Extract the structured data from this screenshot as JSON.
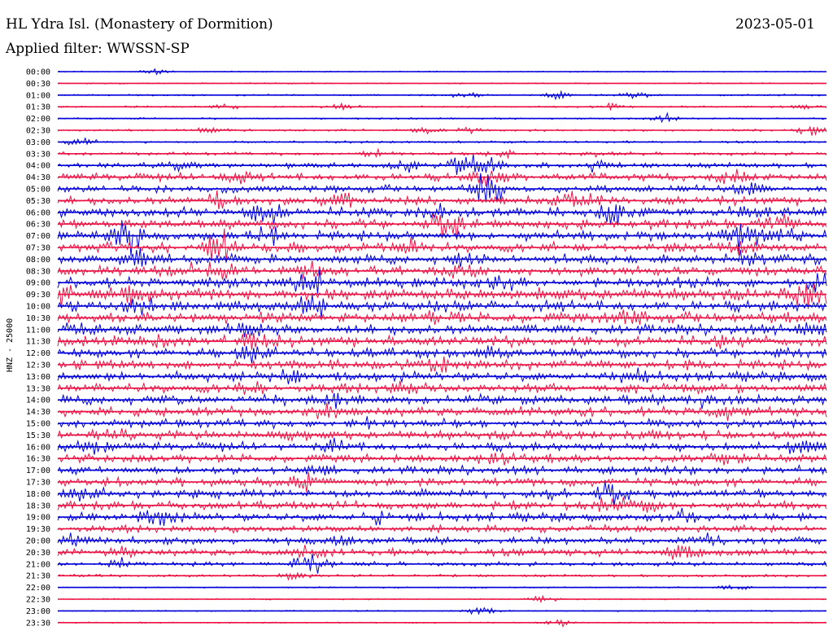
{
  "header": {
    "title": "HL Ydra Isl. (Monastery of Dormition)",
    "date": "2023-05-01",
    "filter": "Applied filter: WWSSN-SP"
  },
  "colors": {
    "odd": "#0000dd",
    "even": "#ee1144"
  },
  "chart_data": {
    "type": "line",
    "title": "HL Ydra Isl. (Monastery of Dormition)",
    "ylabel": "HNZ - 25000",
    "trace_colors": [
      "#0000dd",
      "#ee1144"
    ],
    "rows": [
      {
        "label": "00:00",
        "activity": 0.05,
        "events": [
          [
            0.13,
            0.3
          ]
        ]
      },
      {
        "label": "00:30",
        "activity": 0.06,
        "events": []
      },
      {
        "label": "01:00",
        "activity": 0.08,
        "events": [
          [
            0.53,
            0.4
          ],
          [
            0.65,
            0.4
          ],
          [
            0.75,
            0.3
          ]
        ]
      },
      {
        "label": "01:30",
        "activity": 0.08,
        "events": [
          [
            0.22,
            0.3
          ],
          [
            0.37,
            0.3
          ],
          [
            0.72,
            0.3
          ],
          [
            0.97,
            0.3
          ]
        ]
      },
      {
        "label": "02:00",
        "activity": 0.08,
        "events": [
          [
            0.79,
            0.4
          ]
        ]
      },
      {
        "label": "02:30",
        "activity": 0.1,
        "events": [
          [
            0.2,
            0.3
          ],
          [
            0.48,
            0.3
          ],
          [
            0.54,
            0.4
          ],
          [
            0.98,
            0.6
          ]
        ]
      },
      {
        "label": "03:00",
        "activity": 0.1,
        "events": [
          [
            0.03,
            0.4
          ]
        ]
      },
      {
        "label": "03:30",
        "activity": 0.15,
        "events": [
          [
            0.41,
            0.4
          ],
          [
            0.58,
            0.4
          ],
          [
            0.7,
            0.3
          ]
        ]
      },
      {
        "label": "04:00",
        "activity": 0.25,
        "events": [
          [
            0.16,
            0.5
          ],
          [
            0.45,
            0.5
          ],
          [
            0.53,
            1.2
          ],
          [
            0.56,
            0.6
          ],
          [
            0.7,
            0.5
          ]
        ]
      },
      {
        "label": "04:30",
        "activity": 0.35,
        "events": [
          [
            0.23,
            0.9
          ],
          [
            0.56,
            0.9
          ],
          [
            0.88,
            0.6
          ]
        ]
      },
      {
        "label": "05:00",
        "activity": 0.35,
        "events": [
          [
            0.56,
            1.8
          ],
          [
            0.9,
            0.6
          ]
        ]
      },
      {
        "label": "05:30",
        "activity": 0.4,
        "events": [
          [
            0.21,
            1.0
          ],
          [
            0.37,
            0.7
          ],
          [
            0.67,
            0.6
          ],
          [
            0.7,
            0.6
          ]
        ]
      },
      {
        "label": "06:00",
        "activity": 0.45,
        "events": [
          [
            0.27,
            1.5
          ],
          [
            0.49,
            0.9
          ],
          [
            0.72,
            1.3
          ],
          [
            0.9,
            0.6
          ]
        ]
      },
      {
        "label": "06:30",
        "activity": 0.45,
        "events": [
          [
            0.51,
            1.4
          ],
          [
            0.94,
            0.7
          ]
        ]
      },
      {
        "label": "07:00",
        "activity": 0.45,
        "events": [
          [
            0.09,
            2.0
          ],
          [
            0.27,
            0.7
          ],
          [
            0.89,
            1.4
          ],
          [
            0.94,
            0.6
          ]
        ]
      },
      {
        "label": "07:30",
        "activity": 0.45,
        "events": [
          [
            0.21,
            1.6
          ],
          [
            0.46,
            0.7
          ],
          [
            0.89,
            0.7
          ]
        ]
      },
      {
        "label": "08:00",
        "activity": 0.45,
        "events": [
          [
            0.1,
            1.6
          ],
          [
            0.53,
            0.7
          ],
          [
            0.89,
            0.8
          ]
        ]
      },
      {
        "label": "08:30",
        "activity": 0.45,
        "events": [
          [
            0.17,
            0.8
          ],
          [
            0.21,
            1.0
          ],
          [
            0.33,
            0.8
          ],
          [
            0.53,
            0.7
          ]
        ]
      },
      {
        "label": "09:00",
        "activity": 0.5,
        "events": [
          [
            0.33,
            1.8
          ],
          [
            0.58,
            0.7
          ],
          [
            1.0,
            1.6
          ]
        ]
      },
      {
        "label": "09:30",
        "activity": 0.55,
        "events": [
          [
            0.0,
            1.4
          ],
          [
            0.1,
            1.0
          ],
          [
            0.98,
            1.2
          ]
        ]
      },
      {
        "label": "10:00",
        "activity": 0.5,
        "events": [
          [
            0.33,
            1.2
          ],
          [
            0.1,
            0.9
          ]
        ]
      },
      {
        "label": "10:30",
        "activity": 0.5,
        "events": [
          [
            0.5,
            0.7
          ],
          [
            0.74,
            0.7
          ]
        ]
      },
      {
        "label": "11:00",
        "activity": 0.5,
        "events": [
          [
            0.03,
            0.9
          ],
          [
            0.24,
            0.9
          ],
          [
            0.98,
            0.7
          ]
        ]
      },
      {
        "label": "11:30",
        "activity": 0.5,
        "events": [
          [
            0.14,
            0.7
          ],
          [
            0.26,
            0.9
          ],
          [
            0.87,
            0.6
          ]
        ]
      },
      {
        "label": "12:00",
        "activity": 0.45,
        "events": [
          [
            0.26,
            1.0
          ],
          [
            0.56,
            0.7
          ]
        ]
      },
      {
        "label": "12:30",
        "activity": 0.45,
        "events": [
          [
            0.5,
            0.6
          ]
        ]
      },
      {
        "label": "13:00",
        "activity": 0.45,
        "events": [
          [
            0.3,
            0.6
          ],
          [
            0.75,
            0.5
          ]
        ]
      },
      {
        "label": "13:30",
        "activity": 0.45,
        "events": [
          [
            0.25,
            0.6
          ],
          [
            0.45,
            0.6
          ]
        ]
      },
      {
        "label": "14:00",
        "activity": 0.45,
        "events": [
          [
            0.36,
            0.6
          ],
          [
            0.83,
            0.7
          ]
        ]
      },
      {
        "label": "14:30",
        "activity": 0.45,
        "events": [
          [
            0.35,
            0.7
          ],
          [
            0.86,
            0.6
          ]
        ]
      },
      {
        "label": "15:00",
        "activity": 0.4,
        "events": [
          [
            0.39,
            0.6
          ]
        ]
      },
      {
        "label": "15:30",
        "activity": 0.4,
        "events": [
          [
            0.07,
            0.7
          ],
          [
            0.3,
            0.5
          ],
          [
            0.78,
            0.6
          ]
        ]
      },
      {
        "label": "16:00",
        "activity": 0.4,
        "events": [
          [
            0.05,
            0.7
          ],
          [
            0.36,
            0.7
          ],
          [
            0.97,
            0.6
          ]
        ]
      },
      {
        "label": "16:30",
        "activity": 0.4,
        "events": [
          [
            0.57,
            0.6
          ],
          [
            0.87,
            0.5
          ]
        ]
      },
      {
        "label": "17:00",
        "activity": 0.4,
        "events": [
          [
            0.34,
            0.5
          ]
        ]
      },
      {
        "label": "17:30",
        "activity": 0.4,
        "events": [
          [
            0.32,
            0.9
          ]
        ]
      },
      {
        "label": "18:00",
        "activity": 0.4,
        "events": [
          [
            0.04,
            0.8
          ],
          [
            0.72,
            0.9
          ],
          [
            0.64,
            0.5
          ]
        ]
      },
      {
        "label": "18:30",
        "activity": 0.4,
        "events": [
          [
            0.72,
            0.8
          ],
          [
            0.76,
            0.6
          ]
        ]
      },
      {
        "label": "19:00",
        "activity": 0.4,
        "events": [
          [
            0.13,
            1.0
          ],
          [
            0.81,
            0.6
          ],
          [
            0.42,
            0.5
          ]
        ]
      },
      {
        "label": "19:30",
        "activity": 0.35,
        "events": []
      },
      {
        "label": "20:00",
        "activity": 0.35,
        "events": [
          [
            0.02,
            0.5
          ],
          [
            0.37,
            0.4
          ],
          [
            0.85,
            0.5
          ]
        ]
      },
      {
        "label": "20:30",
        "activity": 0.35,
        "events": [
          [
            0.0,
            0.6
          ],
          [
            0.08,
            0.6
          ],
          [
            0.33,
            0.5
          ],
          [
            0.81,
            0.9
          ]
        ]
      },
      {
        "label": "21:00",
        "activity": 0.2,
        "events": [
          [
            0.08,
            0.6
          ],
          [
            0.31,
            0.6
          ],
          [
            0.34,
            1.0
          ]
        ]
      },
      {
        "label": "21:30",
        "activity": 0.12,
        "events": [
          [
            0.31,
            0.4
          ]
        ]
      },
      {
        "label": "22:00",
        "activity": 0.06,
        "events": [
          [
            0.88,
            0.3
          ]
        ]
      },
      {
        "label": "22:30",
        "activity": 0.06,
        "events": [
          [
            0.63,
            0.4
          ]
        ]
      },
      {
        "label": "23:00",
        "activity": 0.06,
        "events": [
          [
            0.55,
            0.4
          ]
        ]
      },
      {
        "label": "23:30",
        "activity": 0.06,
        "events": [
          [
            0.65,
            0.4
          ]
        ]
      }
    ]
  }
}
